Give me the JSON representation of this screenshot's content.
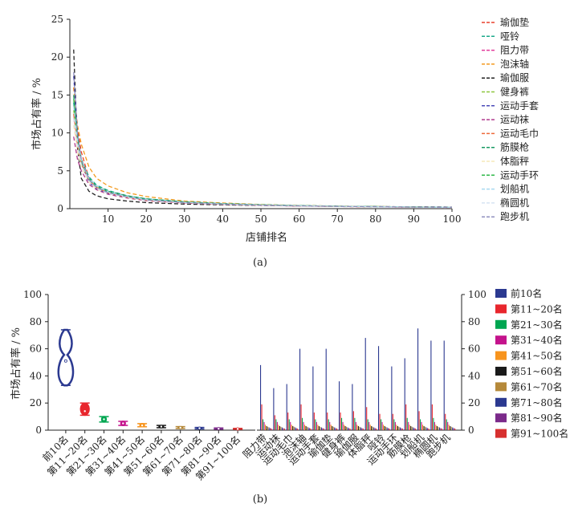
{
  "chart_data": [
    {
      "type": "line",
      "panel_label": "(a)",
      "xlabel": "店铺排名",
      "ylabel": "市场占有率 / %",
      "xlim": [
        0,
        100
      ],
      "ylim": [
        0,
        25
      ],
      "xticks": [
        10,
        20,
        30,
        40,
        50,
        60,
        70,
        80,
        90,
        100
      ],
      "yticks": [
        0,
        5,
        10,
        15,
        20,
        25
      ],
      "line_style": "dashed",
      "legend_position": "right",
      "x": [
        1,
        2,
        3,
        5,
        7,
        10,
        15,
        20,
        30,
        40,
        50,
        60,
        70,
        80,
        90,
        100
      ],
      "series": [
        {
          "name": "瑜伽垫",
          "color": "#e8412c",
          "values": [
            16.0,
            10.5,
            7.5,
            4.0,
            3.0,
            2.2,
            1.6,
            1.2,
            0.8,
            0.6,
            0.45,
            0.35,
            0.3,
            0.25,
            0.2,
            0.18
          ]
        },
        {
          "name": "哑铃",
          "color": "#1aa98a",
          "values": [
            14.0,
            9.0,
            6.5,
            4.2,
            3.1,
            2.4,
            1.7,
            1.3,
            0.9,
            0.65,
            0.5,
            0.4,
            0.32,
            0.27,
            0.22,
            0.2
          ]
        },
        {
          "name": "阻力带",
          "color": "#e23a9a",
          "values": [
            12.0,
            8.0,
            6.0,
            3.8,
            2.8,
            2.0,
            1.5,
            1.1,
            0.8,
            0.6,
            0.45,
            0.36,
            0.3,
            0.25,
            0.2,
            0.17
          ]
        },
        {
          "name": "泡沫轴",
          "color": "#f39a1e",
          "values": [
            16.0,
            11.0,
            8.5,
            5.5,
            4.0,
            3.0,
            2.1,
            1.6,
            1.0,
            0.75,
            0.55,
            0.42,
            0.34,
            0.28,
            0.22,
            0.18
          ]
        },
        {
          "name": "瑜伽服",
          "color": "#222222",
          "values": [
            21.0,
            8.0,
            4.0,
            2.3,
            1.7,
            1.3,
            1.0,
            0.8,
            0.6,
            0.5,
            0.42,
            0.36,
            0.31,
            0.27,
            0.24,
            0.21
          ]
        },
        {
          "name": "健身裤",
          "color": "#8dc63f",
          "values": [
            13.0,
            9.0,
            6.0,
            4.0,
            2.9,
            2.1,
            1.5,
            1.1,
            0.8,
            0.6,
            0.46,
            0.37,
            0.3,
            0.25,
            0.21,
            0.18
          ]
        },
        {
          "name": "运动手套",
          "color": "#4a4ab8",
          "values": [
            17.5,
            10.0,
            6.0,
            3.5,
            2.6,
            2.0,
            1.5,
            1.1,
            0.8,
            0.6,
            0.46,
            0.37,
            0.3,
            0.25,
            0.2,
            0.17
          ]
        },
        {
          "name": "运动袜",
          "color": "#b03a8f",
          "values": [
            9.5,
            6.5,
            5.0,
            3.2,
            2.5,
            1.9,
            1.4,
            1.05,
            0.75,
            0.56,
            0.43,
            0.34,
            0.28,
            0.23,
            0.19,
            0.16
          ]
        },
        {
          "name": "运动毛巾",
          "color": "#ee6a3a",
          "values": [
            12.5,
            8.5,
            6.0,
            3.8,
            2.8,
            2.1,
            1.5,
            1.1,
            0.8,
            0.6,
            0.45,
            0.36,
            0.29,
            0.24,
            0.2,
            0.17
          ]
        },
        {
          "name": "筋膜枪",
          "color": "#179a62",
          "values": [
            15.0,
            9.5,
            6.5,
            4.0,
            3.0,
            2.3,
            1.7,
            1.3,
            0.9,
            0.68,
            0.52,
            0.41,
            0.33,
            0.27,
            0.22,
            0.19
          ]
        },
        {
          "name": "体脂秤",
          "color": "#f6e9b8",
          "values": [
            11.0,
            7.5,
            5.5,
            3.5,
            2.6,
            2.0,
            1.45,
            1.1,
            0.78,
            0.58,
            0.45,
            0.36,
            0.29,
            0.24,
            0.2,
            0.17
          ]
        },
        {
          "name": "运动手环",
          "color": "#2fb84a",
          "values": [
            14.5,
            9.2,
            6.2,
            3.9,
            2.9,
            2.2,
            1.6,
            1.2,
            0.85,
            0.64,
            0.49,
            0.39,
            0.31,
            0.26,
            0.21,
            0.18
          ]
        },
        {
          "name": "划船机",
          "color": "#a6d9f0",
          "values": [
            13.5,
            9.0,
            6.4,
            4.0,
            3.0,
            2.2,
            1.6,
            1.2,
            0.84,
            0.63,
            0.48,
            0.38,
            0.31,
            0.25,
            0.21,
            0.18
          ]
        },
        {
          "name": "椭圆机",
          "color": "#d6e4f2",
          "values": [
            12.0,
            8.2,
            5.8,
            3.7,
            2.7,
            2.0,
            1.5,
            1.1,
            0.78,
            0.58,
            0.45,
            0.36,
            0.29,
            0.24,
            0.2,
            0.17
          ]
        },
        {
          "name": "跑步机",
          "color": "#8f8fbf",
          "values": [
            18.0,
            10.0,
            6.5,
            3.8,
            2.8,
            2.1,
            1.55,
            1.15,
            0.8,
            0.6,
            0.46,
            0.37,
            0.3,
            0.25,
            0.21,
            0.18
          ]
        }
      ]
    },
    {
      "type": "violin",
      "panel_label": "(b)",
      "ylabel": "市场占有率 / %",
      "ylim": [
        0,
        100
      ],
      "yticks": [
        0,
        20,
        40,
        60,
        80,
        100
      ],
      "categories": [
        "前10名",
        "第11~20名",
        "第21~30名",
        "第31~40名",
        "第41~50名",
        "第51~60名",
        "第61~70名",
        "第71~80名",
        "第81~90名",
        "第91~100名"
      ],
      "colors": [
        "#2b3990",
        "#e8262d",
        "#00a651",
        "#c4138c",
        "#f7941d",
        "#1a1a1a",
        "#b5893a",
        "#2b3990",
        "#7b2a8a",
        "#d7302f"
      ],
      "min": [
        33,
        11,
        6,
        3.5,
        2.5,
        1.8,
        1.2,
        0.9,
        0.7,
        0.6
      ],
      "max": [
        74,
        20,
        10,
        6.5,
        4.8,
        3.5,
        2.6,
        2.0,
        1.6,
        1.3
      ],
      "median": [
        51,
        14,
        8,
        5,
        3.5,
        2.6,
        1.8,
        1.4,
        1.1,
        0.9
      ]
    },
    {
      "type": "bar",
      "legend_position": "right",
      "ylim": [
        0,
        100
      ],
      "yticks": [
        0,
        20,
        40,
        60,
        80,
        100
      ],
      "y_axis_side": "right",
      "categories": [
        "阻力带",
        "运动袜",
        "运动毛巾",
        "泡沫轴",
        "运动手套",
        "瑜伽垫",
        "健身裤",
        "瑜伽服",
        "体脂秤",
        "哑铃",
        "运动手环",
        "筋膜枪",
        "划船机",
        "椭圆机",
        "跑步机"
      ],
      "series": [
        {
          "name": "前10名",
          "color": "#2b3990",
          "values": [
            48,
            31,
            34,
            60,
            47,
            60,
            36,
            34,
            68,
            62,
            47,
            53,
            75,
            66,
            66
          ]
        },
        {
          "name": "第11~20名",
          "color": "#e8262d",
          "values": [
            19,
            11,
            13,
            19,
            13,
            13,
            13,
            14,
            17,
            12,
            12,
            19,
            14,
            19,
            12
          ]
        },
        {
          "name": "第21~30名",
          "color": "#00a651",
          "values": [
            8,
            8,
            8,
            9,
            8,
            8,
            9,
            9,
            8,
            8,
            8,
            9,
            8,
            9,
            8
          ]
        },
        {
          "name": "第31~40名",
          "color": "#c4138c",
          "values": [
            6,
            6,
            6,
            6,
            6,
            6,
            6,
            6,
            6,
            6,
            6,
            6,
            6,
            6,
            6
          ]
        },
        {
          "name": "第41~50名",
          "color": "#f7941d",
          "values": [
            4,
            4,
            4,
            4,
            4,
            4,
            4,
            4,
            4,
            4,
            4,
            4,
            4,
            4,
            4
          ]
        },
        {
          "name": "第51~60名",
          "color": "#1a1a1a",
          "values": [
            3,
            3,
            3,
            3,
            3,
            3,
            3,
            3,
            3,
            3,
            3,
            3,
            3,
            3,
            3
          ]
        },
        {
          "name": "第61~70名",
          "color": "#b5893a",
          "values": [
            2.5,
            2.5,
            2.5,
            2.5,
            2.5,
            2.5,
            2.5,
            2.5,
            2.5,
            2.5,
            2.5,
            2.5,
            2.5,
            2.5,
            2.5
          ]
        },
        {
          "name": "第71~80名",
          "color": "#2b3990",
          "values": [
            2,
            2,
            2,
            2,
            2,
            2,
            2,
            2,
            2,
            2,
            2,
            2,
            2,
            2,
            2
          ]
        },
        {
          "name": "第81~90名",
          "color": "#7b2a8a",
          "values": [
            1.5,
            1.5,
            1.5,
            1.5,
            1.5,
            1.5,
            1.5,
            1.5,
            1.5,
            1.5,
            1.5,
            1.5,
            1.5,
            1.5,
            1.5
          ]
        },
        {
          "name": "第91~100名",
          "color": "#d7302f",
          "values": [
            1.2,
            1.2,
            1.2,
            1.2,
            1.2,
            1.2,
            1.2,
            1.2,
            1.2,
            1.2,
            1.2,
            1.2,
            1.2,
            1.2,
            1.2
          ]
        }
      ]
    }
  ]
}
